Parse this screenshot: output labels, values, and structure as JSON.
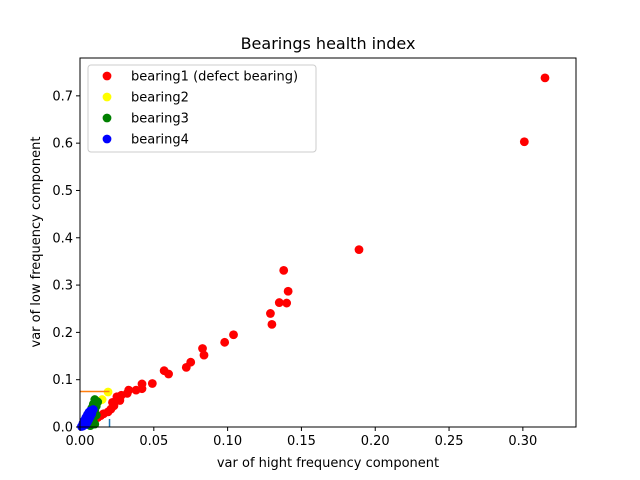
{
  "chart_data": {
    "type": "scatter",
    "title": "Bearings health index",
    "xlabel": "var of hight frequency component",
    "ylabel": "var of low frequency component",
    "xlim": [
      0,
      0.336
    ],
    "ylim": [
      0,
      0.78
    ],
    "xticks": [
      "0.00",
      "0.05",
      "0.10",
      "0.15",
      "0.20",
      "0.25",
      "0.30"
    ],
    "yticks": [
      "0.0",
      "0.1",
      "0.2",
      "0.3",
      "0.4",
      "0.5",
      "0.6",
      "0.7"
    ],
    "legend_position": "top-left",
    "grid": false,
    "series": [
      {
        "name": "bearing1 (defect bearing)",
        "color": "#ff0000",
        "points": [
          [
            0.315,
            0.738
          ],
          [
            0.301,
            0.603
          ],
          [
            0.189,
            0.375
          ],
          [
            0.138,
            0.331
          ],
          [
            0.141,
            0.287
          ],
          [
            0.135,
            0.263
          ],
          [
            0.14,
            0.262
          ],
          [
            0.129,
            0.24
          ],
          [
            0.13,
            0.217
          ],
          [
            0.104,
            0.195
          ],
          [
            0.098,
            0.179
          ],
          [
            0.083,
            0.166
          ],
          [
            0.084,
            0.152
          ],
          [
            0.075,
            0.137
          ],
          [
            0.072,
            0.126
          ],
          [
            0.057,
            0.119
          ],
          [
            0.06,
            0.112
          ],
          [
            0.049,
            0.092
          ],
          [
            0.042,
            0.091
          ],
          [
            0.042,
            0.081
          ],
          [
            0.038,
            0.078
          ],
          [
            0.033,
            0.078
          ],
          [
            0.032,
            0.071
          ],
          [
            0.028,
            0.067
          ],
          [
            0.025,
            0.064
          ],
          [
            0.027,
            0.056
          ],
          [
            0.022,
            0.052
          ],
          [
            0.023,
            0.045
          ],
          [
            0.021,
            0.038
          ],
          [
            0.019,
            0.032
          ],
          [
            0.016,
            0.028
          ],
          [
            0.014,
            0.024
          ],
          [
            0.012,
            0.02
          ],
          [
            0.01,
            0.015
          ]
        ]
      },
      {
        "name": "bearing2",
        "color": "#ffff00",
        "points": [
          [
            0.019,
            0.074
          ],
          [
            0.015,
            0.058
          ],
          [
            0.012,
            0.052
          ],
          [
            0.011,
            0.045
          ],
          [
            0.009,
            0.04
          ],
          [
            0.008,
            0.035
          ],
          [
            0.007,
            0.028
          ],
          [
            0.006,
            0.022
          ],
          [
            0.005,
            0.016
          ],
          [
            0.004,
            0.01
          ]
        ]
      },
      {
        "name": "bearing3",
        "color": "#008000",
        "points": [
          [
            0.01,
            0.058
          ],
          [
            0.011,
            0.055
          ],
          [
            0.012,
            0.053
          ],
          [
            0.009,
            0.048
          ],
          [
            0.011,
            0.044
          ],
          [
            0.008,
            0.04
          ],
          [
            0.01,
            0.036
          ],
          [
            0.009,
            0.03
          ],
          [
            0.011,
            0.025
          ],
          [
            0.008,
            0.02
          ],
          [
            0.009,
            0.012
          ],
          [
            0.01,
            0.006
          ],
          [
            0.007,
            0.003
          ]
        ]
      },
      {
        "name": "bearing4",
        "color": "#0000ff",
        "points": [
          [
            0.009,
            0.037
          ],
          [
            0.007,
            0.034
          ],
          [
            0.006,
            0.031
          ],
          [
            0.008,
            0.028
          ],
          [
            0.005,
            0.026
          ],
          [
            0.007,
            0.022
          ],
          [
            0.004,
            0.02
          ],
          [
            0.006,
            0.016
          ],
          [
            0.003,
            0.014
          ],
          [
            0.005,
            0.01
          ],
          [
            0.002,
            0.008
          ],
          [
            0.004,
            0.005
          ],
          [
            0.002,
            0.002
          ],
          [
            0.001,
            0.001
          ]
        ]
      }
    ],
    "threshold_lines": [
      {
        "orientation": "horizontal",
        "color": "#ff7f0e",
        "value": 0.075,
        "from": 0,
        "to": 0.02
      },
      {
        "orientation": "vertical",
        "color": "#1f77b4",
        "value": 0.02,
        "from": 0,
        "to": 0.017
      }
    ]
  }
}
